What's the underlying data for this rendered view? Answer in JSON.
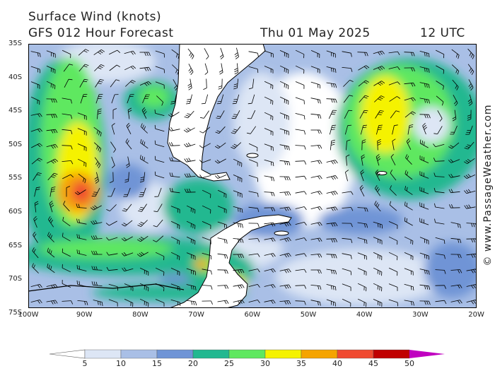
{
  "header": {
    "title": "Surface Wind (knots)",
    "forecast": "GFS 012 Hour Forecast",
    "date": "Thu 01 May 2025",
    "time": "12 UTC"
  },
  "credit": "© www.PassageWeather.com",
  "lat_labels": [
    "35S",
    "40S",
    "45S",
    "50S",
    "55S",
    "60S",
    "65S",
    "70S",
    "75S"
  ],
  "lon_labels": [
    "100W",
    "90W",
    "80W",
    "70W",
    "60W",
    "50W",
    "40W",
    "30W",
    "20W"
  ],
  "scale": {
    "values": [
      "5",
      "10",
      "15",
      "20",
      "25",
      "30",
      "35",
      "40",
      "45",
      "50"
    ],
    "colors": [
      "#ffffff",
      "#dde6f5",
      "#a9bfe6",
      "#6f94d6",
      "#22b890",
      "#5fe860",
      "#f5f200",
      "#f5a400",
      "#f04a30",
      "#c00000",
      "#c000c0"
    ]
  },
  "colors": {
    "land": "#ffffff",
    "coast": "#000000",
    "barb": "#000000"
  }
}
